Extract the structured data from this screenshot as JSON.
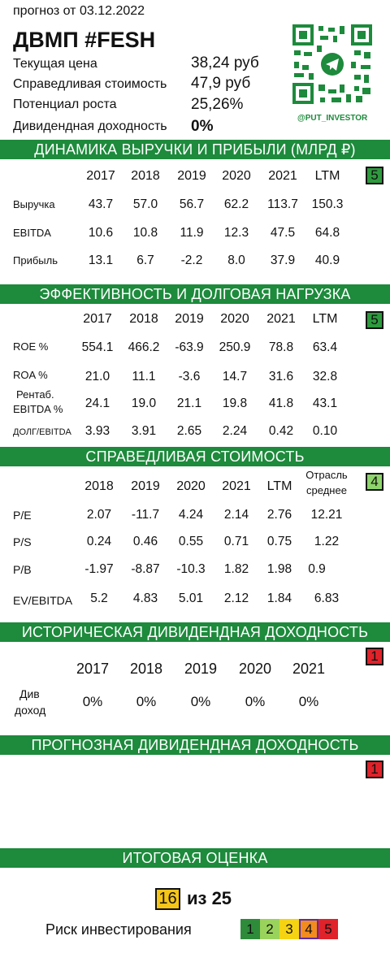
{
  "header": {
    "forecast_date": "прогноз от 03.12.2022",
    "ticker_title": "ДВМП #FESH",
    "metrics": [
      {
        "label": "Текущая цена",
        "value": "38,24 руб"
      },
      {
        "label": "Справедливая стоимость",
        "value": "47,9 руб"
      },
      {
        "label": "Потенциал роста",
        "value": "25,26%"
      },
      {
        "label": "Дивидендная доходность",
        "value": "0%"
      }
    ],
    "qr_caption": "@PUT_INVESTOR",
    "accent_green": "#1d8a3c"
  },
  "revenue": {
    "title": "ДИНАМИКА ВЫРУЧКИ И ПРИБЫЛИ (МЛРД ₽)",
    "score": "5",
    "columns": [
      "2017",
      "2018",
      "2019",
      "2020",
      "2021",
      "LTM"
    ],
    "rows": [
      {
        "label": "Выручка",
        "values": [
          "43.7",
          "57.0",
          "56.7",
          "62.2",
          "113.7",
          "150.3"
        ]
      },
      {
        "label": "EBITDA",
        "values": [
          "10.6",
          "10.8",
          "11.9",
          "12.3",
          "47.5",
          "64.8"
        ]
      },
      {
        "label": "Прибыль",
        "values": [
          "13.1",
          "6.7",
          "-2.2",
          "8.0",
          "37.9",
          "40.9"
        ]
      }
    ]
  },
  "efficiency": {
    "title": "ЭФФЕКТИВНОСТЬ И ДОЛГОВАЯ НАГРУЗКА",
    "score": "5",
    "columns": [
      "2017",
      "2018",
      "2019",
      "2020",
      "2021",
      "LTM"
    ],
    "rows": [
      {
        "label": "ROE %",
        "values": [
          "554.1",
          "466.2",
          "-63.9",
          "250.9",
          "78.8",
          "63.4"
        ]
      },
      {
        "label": "ROA %",
        "values": [
          "21.0",
          "11.1",
          "-3.6",
          "14.7",
          "31.6",
          "32.8"
        ]
      },
      {
        "label": "Рентаб.",
        "label2": "EBITDA %",
        "values": [
          "24.1",
          "19.0",
          "21.1",
          "19.8",
          "41.8",
          "43.1"
        ]
      },
      {
        "label": "ДОЛГ/EBITDA",
        "values": [
          "3.93",
          "3.91",
          "2.65",
          "2.24",
          "0.42",
          "0.10"
        ]
      }
    ]
  },
  "fair_value": {
    "title": "СПРАВЕДЛИВАЯ СТОИМОСТЬ",
    "score": "4",
    "columns": [
      "2018",
      "2019",
      "2020",
      "2021",
      "LTM"
    ],
    "industry_header_1": "Отрасль",
    "industry_header_2": "среднее",
    "rows": [
      {
        "label": "P/E",
        "values": [
          "2.07",
          "-11.7",
          "4.24",
          "2.14",
          "2.76",
          "12.21"
        ]
      },
      {
        "label": "P/S",
        "values": [
          "0.24",
          "0.46",
          "0.55",
          "0.71",
          "0.75",
          "1.22"
        ]
      },
      {
        "label": "P/B",
        "values": [
          "-1.97",
          "-8.87",
          "-10.3",
          "1.82",
          "1.98",
          "0.9"
        ]
      },
      {
        "label": "EV/EBITDA",
        "values": [
          "5.2",
          "4.83",
          "5.01",
          "2.12",
          "1.84",
          "6.83"
        ]
      }
    ]
  },
  "historical_dividends": {
    "title": "ИСТОРИЧЕСКАЯ ДИВИДЕНДНАЯ ДОХОДНОСТЬ",
    "score": "1",
    "columns": [
      "2017",
      "2018",
      "2019",
      "2020",
      "2021"
    ],
    "row_label_1": "Див",
    "row_label_2": "доход",
    "values": [
      "0%",
      "0%",
      "0%",
      "0%",
      "0%"
    ]
  },
  "forecast_dividends": {
    "title": "ПРОГНОЗНАЯ ДИВИДЕНДНАЯ ДОХОДНОСТЬ",
    "score": "1"
  },
  "final": {
    "title": "ИТОГОВАЯ ОЦЕНКА",
    "score": "16",
    "out_of": "из 25",
    "risk_label": "Риск инвестирования",
    "risk_levels": [
      "1",
      "2",
      "3",
      "4",
      "5"
    ],
    "risk_colors": [
      "#2e8b3a",
      "#9ad35b",
      "#f5d313",
      "#f28c1e",
      "#e0222a"
    ],
    "risk_selected": "4"
  }
}
